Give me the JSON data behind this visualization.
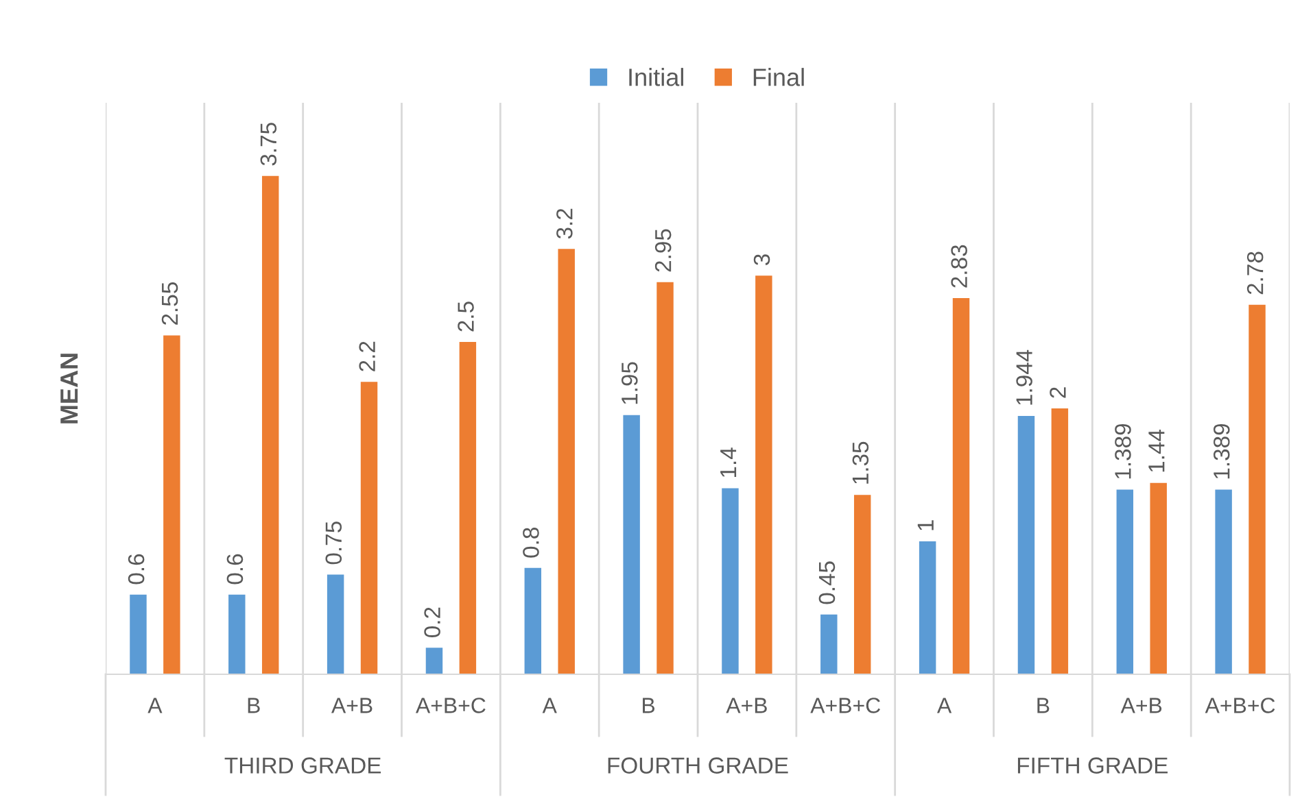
{
  "chart_data": {
    "type": "bar",
    "ylabel": "MEAN",
    "categories": [
      "A",
      "B",
      "A+B",
      "A+B+C",
      "A",
      "B",
      "A+B",
      "A+B+C",
      "A",
      "B",
      "A+B",
      "A+B+C"
    ],
    "series": [
      {
        "name": "Initial",
        "color": "#5b9bd5",
        "values": [
          0.6,
          0.6,
          0.75,
          0.2,
          0.8,
          1.95,
          1.4,
          0.45,
          1,
          1.944,
          1.389,
          1.389
        ]
      },
      {
        "name": "Final",
        "color": "#ed7d31",
        "values": [
          2.55,
          3.75,
          2.2,
          2.5,
          3.2,
          2.95,
          3,
          1.35,
          2.83,
          2,
          1.44,
          2.78
        ]
      }
    ],
    "annotations": [
      "THIRD GRADE",
      "FOURTH GRADE",
      "FIFTH GRADE"
    ],
    "ylim": [
      0,
      4.3
    ],
    "data_labels": true,
    "grid": "x",
    "legend": "top"
  }
}
